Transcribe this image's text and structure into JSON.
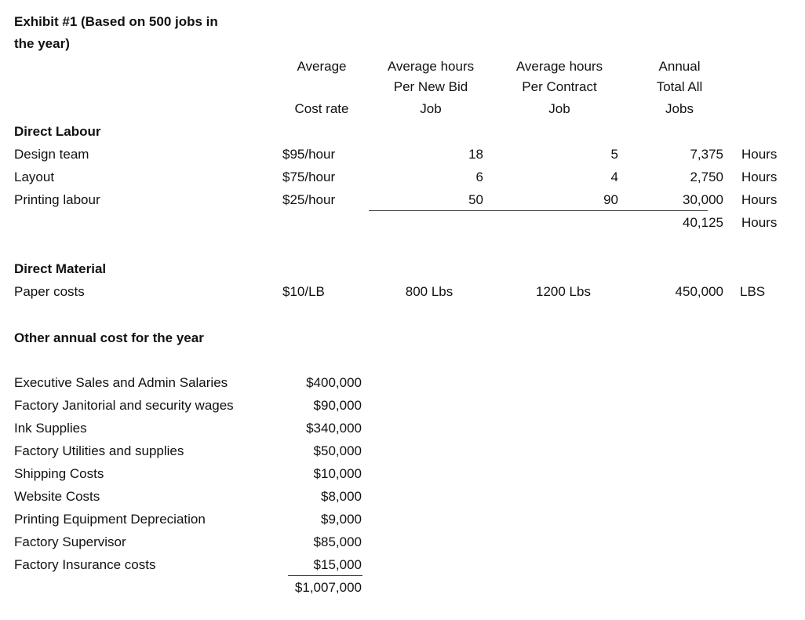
{
  "title_line1": "Exhibit #1 (Based on 500 jobs in",
  "title_line2": "the year)",
  "headers": {
    "avg_line1": "Average",
    "avg_line2": "Cost rate",
    "newbid": [
      "Average hours",
      "Per  New Bid",
      "Job"
    ],
    "contract": [
      "Average hours",
      "Per  Contract",
      "Job"
    ],
    "annual": [
      "Annual",
      "Total All",
      "Jobs"
    ]
  },
  "direct_labour": {
    "heading": "Direct Labour",
    "rows": [
      {
        "label": "Design team",
        "rate": "$95/hour",
        "new_bid": "18",
        "contract": "5",
        "annual": "7,375",
        "unit": "Hours"
      },
      {
        "label": "Layout",
        "rate": "$75/hour",
        "new_bid": "6",
        "contract": "4",
        "annual": "2,750",
        "unit": "Hours"
      },
      {
        "label": "Printing labour",
        "rate": "$25/hour",
        "new_bid": "50",
        "contract": "90",
        "annual": "30,000",
        "unit": "Hours"
      }
    ],
    "total": "40,125",
    "total_unit": "Hours"
  },
  "direct_material": {
    "heading": "Direct Material",
    "label": "Paper costs",
    "rate": "$10/LB",
    "new_bid": "800 Lbs",
    "contract": "1200 Lbs",
    "annual": "450,000",
    "unit": "LBS"
  },
  "other": {
    "heading": "Other annual cost for the year",
    "rows": [
      {
        "label": "Executive Sales and Admin Salaries",
        "value": "$400,000"
      },
      {
        "label": "Factory Janitorial and security wages",
        "value": "$90,000"
      },
      {
        "label": "Ink Supplies",
        "value": "$340,000"
      },
      {
        "label": "Factory Utilities and supplies",
        "value": "$50,000"
      },
      {
        "label": "Shipping Costs",
        "value": "$10,000"
      },
      {
        "label": "Website Costs",
        "value": "$8,000"
      },
      {
        "label": "Printing Equipment Depreciation",
        "value": "$9,000"
      },
      {
        "label": "Factory Supervisor",
        "value": "$85,000"
      },
      {
        "label": "Factory Insurance costs",
        "value": "$15,000"
      }
    ],
    "total": "$1,007,000"
  }
}
